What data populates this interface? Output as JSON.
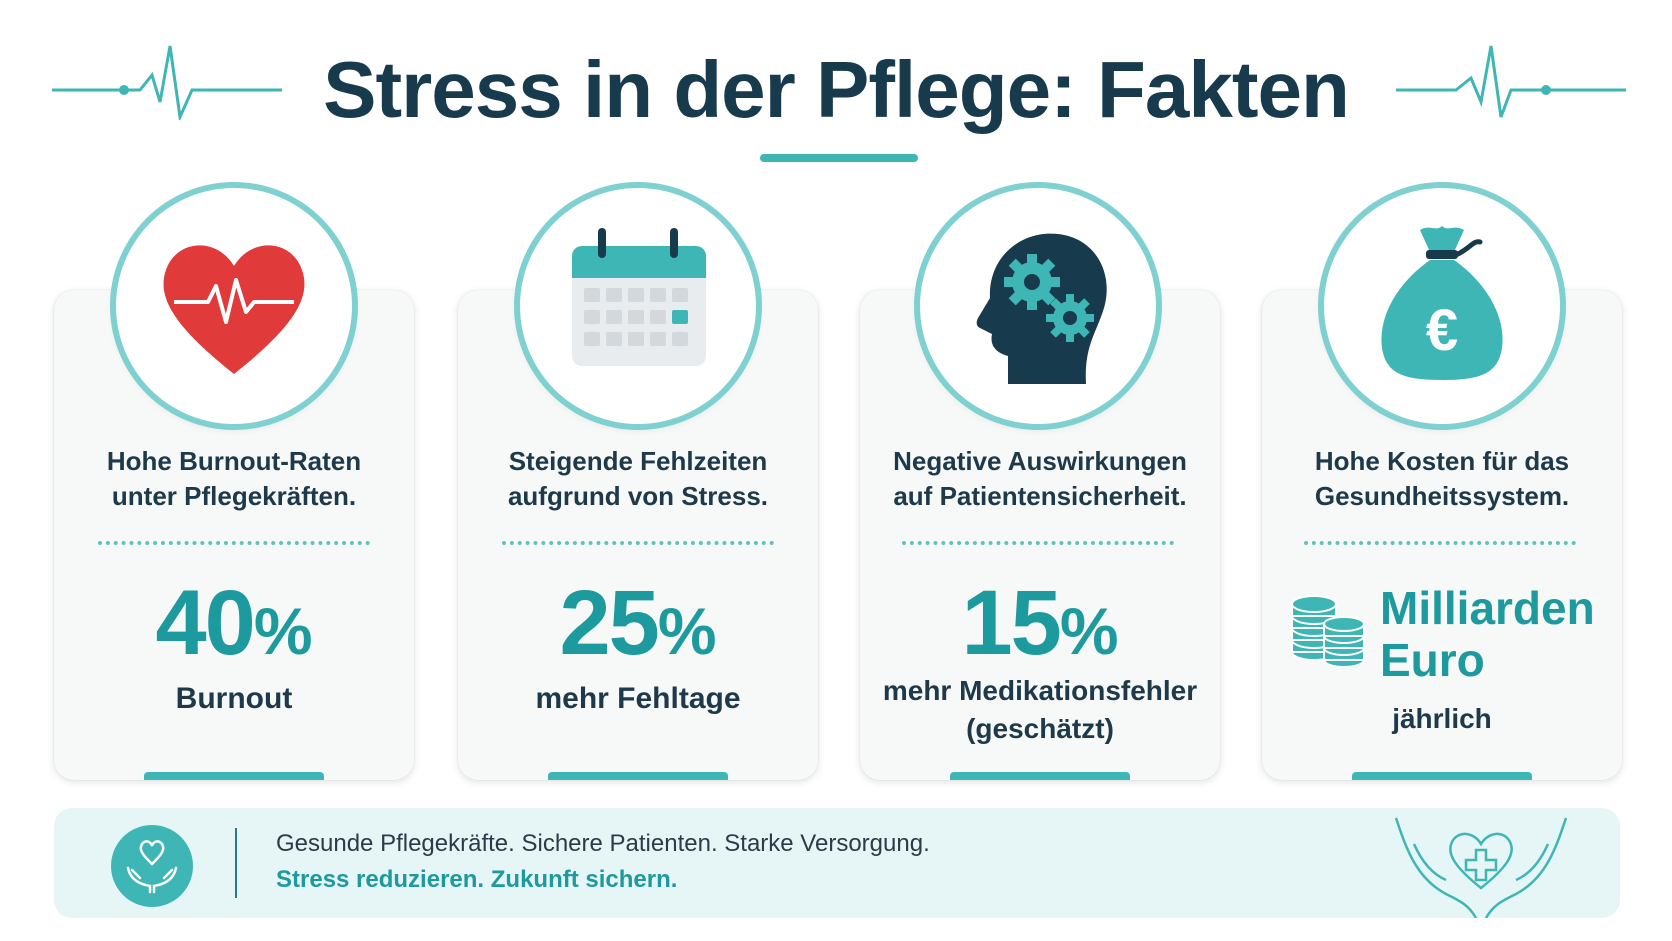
{
  "header": {
    "title": "Stress in der Pflege: Fakten"
  },
  "colors": {
    "accent": "#3fb6b6",
    "accent_dark": "#1d9a9e",
    "title": "#173a4c",
    "heart_red": "#e03a3a",
    "footer_bg": "#e6f5f5"
  },
  "cards": [
    {
      "icon": "heart-pulse-icon",
      "text_line1": "Hohe Burnout-Raten",
      "text_line2": "unter Pflegekräften.",
      "value": "40",
      "unit": "%",
      "label": "Burnout"
    },
    {
      "icon": "calendar-icon",
      "text_line1": "Steigende Fehlzeiten",
      "text_line2": "aufgrund von Stress.",
      "value": "25",
      "unit": "%",
      "label": "mehr Fehltage"
    },
    {
      "icon": "head-gears-icon",
      "text_line1": "Negative Auswirkungen",
      "text_line2": "auf Patientensicherheit.",
      "value": "15",
      "unit": "%",
      "label_line1": "mehr Medikationsfehler",
      "label_line2": "(geschätzt)"
    },
    {
      "icon": "money-bag-euro-icon",
      "text_line1": "Hohe Kosten für das",
      "text_line2": "Gesundheitssystem.",
      "value_line1": "Milliarden",
      "value_line2": "Euro",
      "label": "jährlich"
    }
  ],
  "footer": {
    "line1": "Gesunde Pflegekräfte. Sichere Patienten. Starke Versorgung.",
    "line2": "Stress reduzieren. Zukunft sichern."
  }
}
